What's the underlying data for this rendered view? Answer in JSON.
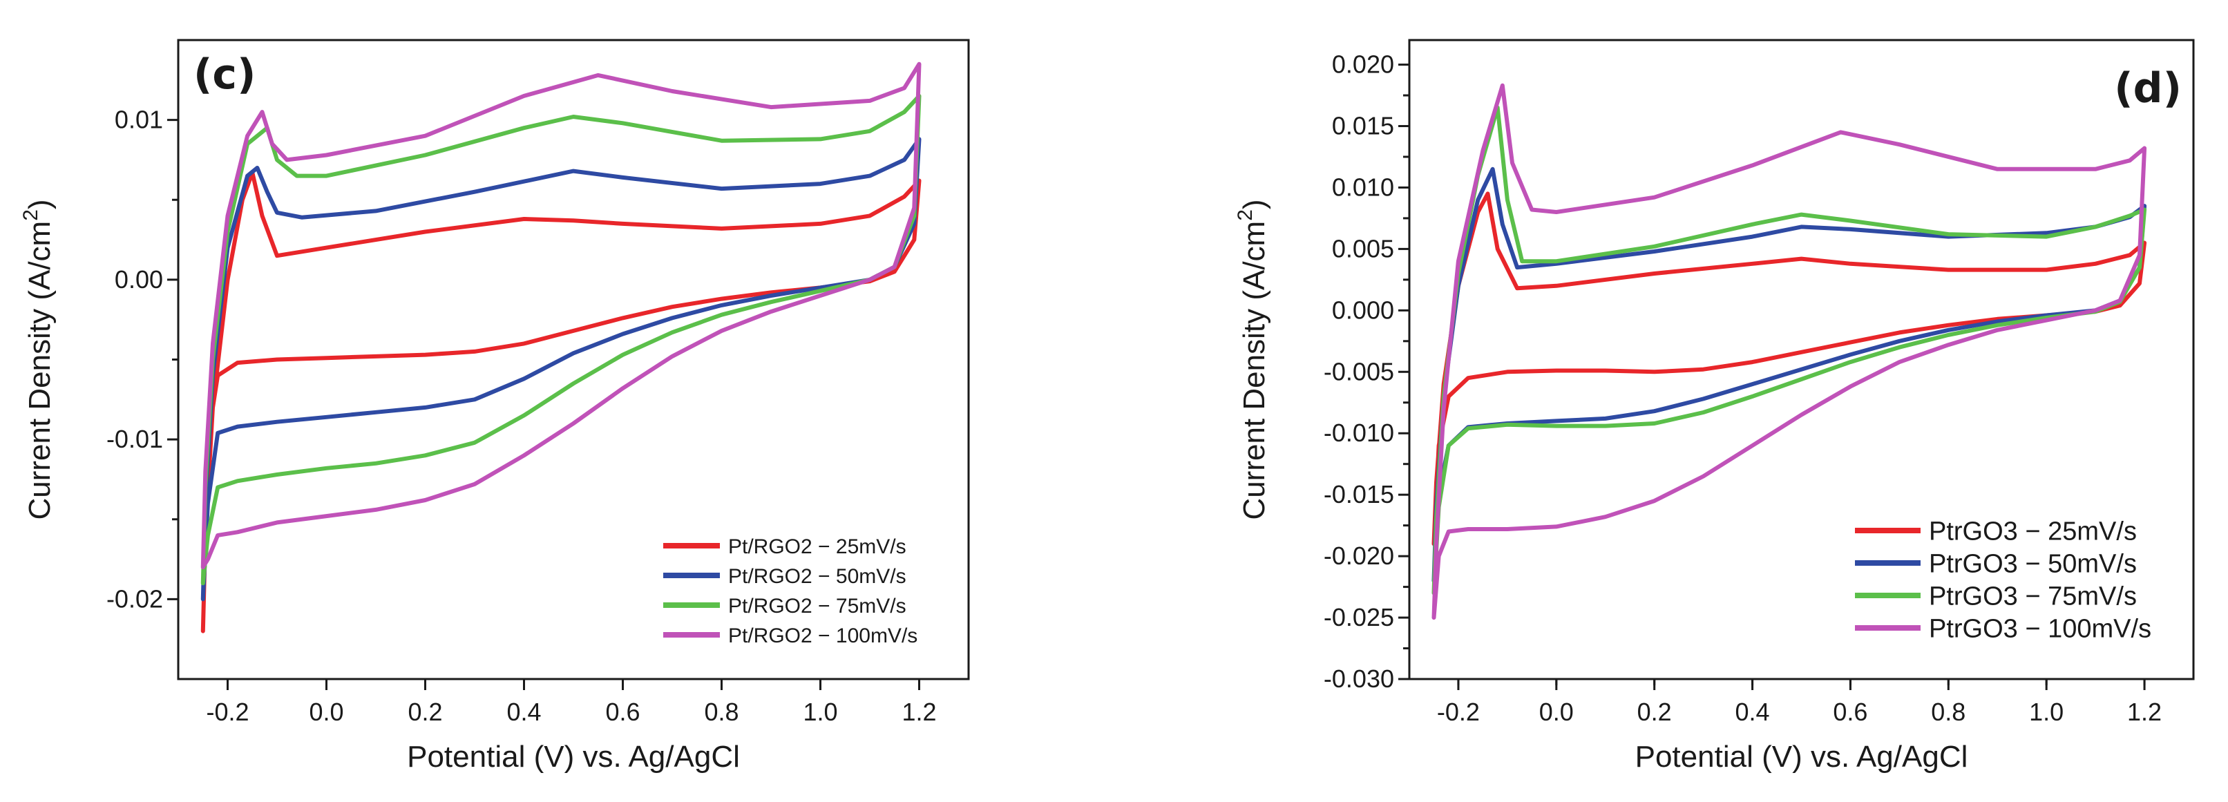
{
  "chart_data": [
    {
      "type": "line",
      "panel_label": "(c)",
      "xlabel": "Potential (V) vs. Ag/AgCl",
      "ylabel": "Current Density (A/cm",
      "ylabel_sup": "2",
      "ylabel_close": ")",
      "xlim": [
        -0.3,
        1.3
      ],
      "ylim": [
        -0.025,
        0.015
      ],
      "x_ticks": [
        -0.2,
        0.0,
        0.2,
        0.4,
        0.6,
        0.8,
        1.0,
        1.2
      ],
      "x_tick_labels": [
        "-0.2",
        "0.0",
        "0.2",
        "0.4",
        "0.6",
        "0.8",
        "1.0",
        "1.2"
      ],
      "y_ticks": [
        -0.02,
        -0.01,
        0.0,
        0.01
      ],
      "y_tick_labels": [
        "-0.02",
        "-0.01",
        "0.00",
        "0.01"
      ],
      "grid": false,
      "legend_position": "bottom-right",
      "series": [
        {
          "name": "Pt/RGO2 − 25mV/s",
          "color": "#e8262a",
          "x": [
            -0.25,
            -0.245,
            -0.23,
            -0.2,
            -0.17,
            -0.15,
            -0.13,
            -0.1,
            0.0,
            0.2,
            0.4,
            0.5,
            0.6,
            0.8,
            1.0,
            1.1,
            1.17,
            1.2,
            1.19,
            1.15,
            1.1,
            1.0,
            0.9,
            0.8,
            0.7,
            0.6,
            0.5,
            0.4,
            0.3,
            0.2,
            0.1,
            0.0,
            -0.1,
            -0.18,
            -0.22,
            -0.24,
            -0.25
          ],
          "y": [
            -0.022,
            -0.016,
            -0.008,
            0.0,
            0.005,
            0.0067,
            0.004,
            0.0015,
            0.002,
            0.003,
            0.0038,
            0.0037,
            0.0035,
            0.0032,
            0.0035,
            0.004,
            0.0052,
            0.0062,
            0.0025,
            0.0005,
            -0.0001,
            -0.0005,
            -0.0008,
            -0.0012,
            -0.0017,
            -0.0024,
            -0.0032,
            -0.004,
            -0.0045,
            -0.0047,
            -0.0048,
            -0.0049,
            -0.005,
            -0.0052,
            -0.006,
            -0.01,
            -0.022
          ]
        },
        {
          "name": "Pt/RGO2 − 50mV/s",
          "color": "#2e4aa3",
          "x": [
            -0.25,
            -0.245,
            -0.23,
            -0.2,
            -0.16,
            -0.14,
            -0.12,
            -0.1,
            -0.05,
            0.1,
            0.3,
            0.5,
            0.6,
            0.8,
            1.0,
            1.1,
            1.17,
            1.2,
            1.19,
            1.15,
            1.1,
            1.0,
            0.9,
            0.8,
            0.7,
            0.6,
            0.5,
            0.4,
            0.3,
            0.2,
            0.1,
            0.0,
            -0.1,
            -0.18,
            -0.22,
            -0.24,
            -0.25
          ],
          "y": [
            -0.02,
            -0.014,
            -0.006,
            0.002,
            0.0065,
            0.007,
            0.0055,
            0.0042,
            0.0039,
            0.0043,
            0.0055,
            0.0068,
            0.0064,
            0.0057,
            0.006,
            0.0065,
            0.0075,
            0.0088,
            0.0035,
            0.0008,
            0.0,
            -0.0005,
            -0.001,
            -0.0016,
            -0.0024,
            -0.0034,
            -0.0046,
            -0.0062,
            -0.0075,
            -0.008,
            -0.0083,
            -0.0086,
            -0.0089,
            -0.0092,
            -0.0096,
            -0.014,
            -0.02
          ]
        },
        {
          "name": "Pt/RGO2 − 75mV/s",
          "color": "#5bbf4a",
          "x": [
            -0.25,
            -0.245,
            -0.23,
            -0.2,
            -0.16,
            -0.12,
            -0.1,
            -0.06,
            0.0,
            0.2,
            0.4,
            0.5,
            0.6,
            0.8,
            1.0,
            1.1,
            1.17,
            1.2,
            1.19,
            1.15,
            1.1,
            1.0,
            0.9,
            0.8,
            0.7,
            0.6,
            0.5,
            0.4,
            0.3,
            0.2,
            0.1,
            0.0,
            -0.1,
            -0.18,
            -0.22,
            -0.24,
            -0.25
          ],
          "y": [
            -0.019,
            -0.013,
            -0.005,
            0.003,
            0.0085,
            0.0095,
            0.0075,
            0.0065,
            0.0065,
            0.0078,
            0.0095,
            0.0102,
            0.0098,
            0.0087,
            0.0088,
            0.0093,
            0.0105,
            0.0115,
            0.004,
            0.0008,
            0.0,
            -0.0007,
            -0.0014,
            -0.0022,
            -0.0033,
            -0.0047,
            -0.0065,
            -0.0085,
            -0.0102,
            -0.011,
            -0.0115,
            -0.0118,
            -0.0122,
            -0.0126,
            -0.013,
            -0.016,
            -0.019
          ]
        },
        {
          "name": "Pt/RGO2 − 100mV/s",
          "color": "#c052b8",
          "x": [
            -0.25,
            -0.245,
            -0.23,
            -0.2,
            -0.16,
            -0.13,
            -0.11,
            -0.08,
            0.0,
            0.2,
            0.4,
            0.55,
            0.7,
            0.9,
            1.1,
            1.17,
            1.2,
            1.19,
            1.15,
            1.1,
            1.0,
            0.9,
            0.8,
            0.7,
            0.6,
            0.5,
            0.4,
            0.3,
            0.2,
            0.1,
            0.0,
            -0.1,
            -0.18,
            -0.22,
            -0.24,
            -0.25
          ],
          "y": [
            -0.018,
            -0.012,
            -0.004,
            0.004,
            0.009,
            0.0105,
            0.0085,
            0.0075,
            0.0078,
            0.009,
            0.0115,
            0.0128,
            0.0118,
            0.0108,
            0.0112,
            0.012,
            0.0135,
            0.0045,
            0.0008,
            0.0,
            -0.001,
            -0.002,
            -0.0032,
            -0.0048,
            -0.0068,
            -0.009,
            -0.011,
            -0.0128,
            -0.0138,
            -0.0144,
            -0.0148,
            -0.0152,
            -0.0158,
            -0.016,
            -0.0175,
            -0.018
          ]
        }
      ]
    },
    {
      "type": "line",
      "panel_label": "(d)",
      "xlabel": "Potential (V) vs. Ag/AgCl",
      "ylabel": "Current Density (A/cm",
      "ylabel_sup": "2",
      "ylabel_close": ")",
      "xlim": [
        -0.3,
        1.3
      ],
      "ylim": [
        -0.03,
        0.022
      ],
      "x_ticks": [
        -0.2,
        0.0,
        0.2,
        0.4,
        0.6,
        0.8,
        1.0,
        1.2
      ],
      "x_tick_labels": [
        "-0.2",
        "0.0",
        "0.2",
        "0.4",
        "0.6",
        "0.8",
        "1.0",
        "1.2"
      ],
      "y_ticks": [
        -0.03,
        -0.025,
        -0.02,
        -0.015,
        -0.01,
        -0.005,
        0.0,
        0.005,
        0.01,
        0.015,
        0.02
      ],
      "y_tick_labels": [
        "-0.030",
        "-0.025",
        "-0.020",
        "-0.015",
        "-0.010",
        "-0.005",
        "0.000",
        "0.005",
        "0.010",
        "0.015",
        "0.020"
      ],
      "grid": false,
      "legend_position": "bottom-right",
      "series": [
        {
          "name": "PtrGO3 − 25mV/s",
          "color": "#e8262a",
          "x": [
            -0.25,
            -0.245,
            -0.23,
            -0.2,
            -0.16,
            -0.14,
            -0.12,
            -0.08,
            0.0,
            0.2,
            0.4,
            0.5,
            0.6,
            0.8,
            1.0,
            1.1,
            1.17,
            1.2,
            1.19,
            1.15,
            1.1,
            1.0,
            0.9,
            0.8,
            0.7,
            0.6,
            0.5,
            0.4,
            0.3,
            0.2,
            0.1,
            0.0,
            -0.1,
            -0.18,
            -0.22,
            -0.24,
            -0.25
          ],
          "y": [
            -0.019,
            -0.014,
            -0.006,
            0.002,
            0.008,
            0.0095,
            0.005,
            0.0018,
            0.002,
            0.003,
            0.0038,
            0.0042,
            0.0038,
            0.0033,
            0.0033,
            0.0038,
            0.0045,
            0.0055,
            0.0022,
            0.0004,
            -0.0001,
            -0.0004,
            -0.0007,
            -0.0012,
            -0.0018,
            -0.0026,
            -0.0034,
            -0.0042,
            -0.0048,
            -0.005,
            -0.0049,
            -0.0049,
            -0.005,
            -0.0055,
            -0.007,
            -0.011,
            -0.019
          ]
        },
        {
          "name": "PtrGO3 − 50mV/s",
          "color": "#2e4aa3",
          "x": [
            -0.25,
            -0.245,
            -0.23,
            -0.2,
            -0.16,
            -0.13,
            -0.11,
            -0.08,
            0.0,
            0.2,
            0.4,
            0.5,
            0.6,
            0.8,
            1.0,
            1.1,
            1.17,
            1.2,
            1.19,
            1.15,
            1.1,
            1.0,
            0.9,
            0.8,
            0.7,
            0.6,
            0.5,
            0.4,
            0.3,
            0.2,
            0.1,
            0.0,
            -0.1,
            -0.18,
            -0.22,
            -0.24,
            -0.25
          ],
          "y": [
            -0.022,
            -0.016,
            -0.007,
            0.002,
            0.009,
            0.0115,
            0.007,
            0.0035,
            0.0038,
            0.0048,
            0.006,
            0.0068,
            0.0066,
            0.006,
            0.0063,
            0.0068,
            0.0076,
            0.0085,
            0.0035,
            0.0008,
            0.0,
            -0.0004,
            -0.0009,
            -0.0016,
            -0.0025,
            -0.0036,
            -0.0048,
            -0.006,
            -0.0072,
            -0.0082,
            -0.0088,
            -0.009,
            -0.0092,
            -0.0095,
            -0.011,
            -0.015,
            -0.022
          ]
        },
        {
          "name": "PtrGO3 − 75mV/s",
          "color": "#5bbf4a",
          "x": [
            -0.25,
            -0.245,
            -0.23,
            -0.2,
            -0.16,
            -0.12,
            -0.1,
            -0.07,
            0.0,
            0.2,
            0.4,
            0.5,
            0.6,
            0.8,
            1.0,
            1.1,
            1.17,
            1.2,
            1.19,
            1.15,
            1.1,
            1.0,
            0.9,
            0.8,
            0.7,
            0.6,
            0.5,
            0.4,
            0.3,
            0.2,
            0.1,
            0.0,
            -0.1,
            -0.18,
            -0.22,
            -0.24,
            -0.25
          ],
          "y": [
            -0.023,
            -0.017,
            -0.007,
            0.003,
            0.011,
            0.0165,
            0.009,
            0.004,
            0.004,
            0.0052,
            0.007,
            0.0078,
            0.0073,
            0.0062,
            0.006,
            0.0068,
            0.0077,
            0.0082,
            0.0035,
            0.0007,
            -0.0001,
            -0.0006,
            -0.0012,
            -0.002,
            -0.003,
            -0.0042,
            -0.0056,
            -0.007,
            -0.0083,
            -0.0092,
            -0.0094,
            -0.0094,
            -0.0093,
            -0.0096,
            -0.011,
            -0.016,
            -0.023
          ]
        },
        {
          "name": "PtrGO3 − 100mV/s",
          "color": "#c052b8",
          "x": [
            -0.25,
            -0.245,
            -0.23,
            -0.2,
            -0.15,
            -0.11,
            -0.09,
            -0.05,
            0.0,
            0.2,
            0.4,
            0.58,
            0.7,
            0.9,
            1.1,
            1.17,
            1.2,
            1.19,
            1.15,
            1.1,
            1.0,
            0.9,
            0.8,
            0.7,
            0.6,
            0.5,
            0.4,
            0.3,
            0.2,
            0.1,
            0.0,
            -0.1,
            -0.18,
            -0.22,
            -0.24,
            -0.25
          ],
          "y": [
            -0.025,
            -0.019,
            -0.008,
            0.004,
            0.013,
            0.0183,
            0.012,
            0.0082,
            0.008,
            0.0092,
            0.0118,
            0.0145,
            0.0135,
            0.0115,
            0.0115,
            0.0122,
            0.0132,
            0.0045,
            0.0008,
            0.0,
            -0.0008,
            -0.0016,
            -0.0028,
            -0.0042,
            -0.0062,
            -0.0085,
            -0.011,
            -0.0135,
            -0.0155,
            -0.0168,
            -0.0176,
            -0.0178,
            -0.0178,
            -0.018,
            -0.02,
            -0.025
          ]
        }
      ]
    }
  ]
}
